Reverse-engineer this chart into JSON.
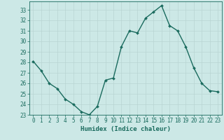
{
  "x": [
    0,
    1,
    2,
    3,
    4,
    5,
    6,
    7,
    8,
    9,
    10,
    11,
    12,
    13,
    14,
    15,
    16,
    17,
    18,
    19,
    20,
    21,
    22,
    23
  ],
  "y": [
    28.1,
    27.2,
    26.0,
    25.5,
    24.5,
    24.0,
    23.3,
    23.0,
    23.8,
    26.3,
    26.5,
    29.5,
    31.0,
    30.8,
    32.2,
    32.8,
    33.4,
    31.5,
    31.0,
    29.5,
    27.5,
    26.0,
    25.3,
    25.2
  ],
  "line_color": "#1a6b5e",
  "marker": "D",
  "marker_size": 2.0,
  "bg_color": "#cce8e6",
  "grid_color": "#b8d4d2",
  "tick_color": "#1a6b5e",
  "label_color": "#1a6b5e",
  "xlabel": "Humidex (Indice chaleur)",
  "ylabel": "",
  "ylim": [
    23,
    33.8
  ],
  "xlim": [
    -0.5,
    23.5
  ],
  "yticks": [
    23,
    24,
    25,
    26,
    27,
    28,
    29,
    30,
    31,
    32,
    33
  ],
  "xticks": [
    0,
    1,
    2,
    3,
    4,
    5,
    6,
    7,
    8,
    9,
    10,
    11,
    12,
    13,
    14,
    15,
    16,
    17,
    18,
    19,
    20,
    21,
    22,
    23
  ],
  "xtick_labels": [
    "0",
    "1",
    "2",
    "3",
    "4",
    "5",
    "6",
    "7",
    "8",
    "9",
    "10",
    "11",
    "12",
    "13",
    "14",
    "15",
    "16",
    "17",
    "18",
    "19",
    "20",
    "21",
    "22",
    "23"
  ],
  "fontsize_ticks": 5.5,
  "fontsize_label": 6.5,
  "linewidth": 1.0
}
